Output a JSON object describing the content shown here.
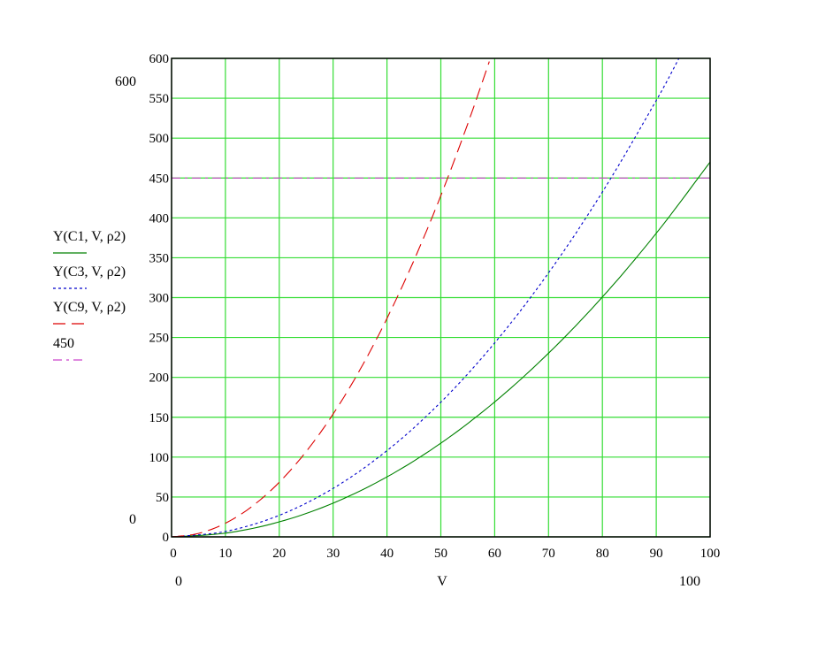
{
  "chart_data": {
    "type": "line",
    "x_range": [
      0,
      100
    ],
    "y_range": [
      0,
      600
    ],
    "grid": true,
    "x_ticks": [
      0,
      10,
      20,
      30,
      40,
      50,
      60,
      70,
      80,
      90,
      100
    ],
    "y_ticks": [
      0,
      50,
      100,
      150,
      200,
      250,
      300,
      350,
      400,
      450,
      500,
      550,
      600
    ],
    "x_axis_label": "V",
    "x_min_label": "0",
    "x_max_label": "100",
    "y_min_label": "0",
    "y_max_label": "600",
    "legend_placement": "left",
    "series": [
      {
        "name": "Y(C1, V, ρ2)",
        "color": "#008000",
        "dash": "solid",
        "x": [
          0,
          10,
          20,
          30,
          40,
          50,
          60,
          70,
          80,
          90,
          100
        ],
        "y": [
          0,
          4.7,
          18.8,
          42.3,
          75.2,
          117.5,
          169.2,
          230.3,
          300.8,
          380.7,
          470
        ]
      },
      {
        "name": "Y(C3, V, ρ2)",
        "color": "#0000cc",
        "dash": "dotted",
        "x": [
          0,
          10,
          20,
          30,
          40,
          50,
          60,
          70,
          80,
          90,
          94.2
        ],
        "y": [
          0,
          6.8,
          27,
          60.8,
          108.1,
          168.9,
          243.2,
          331,
          432.4,
          547.2,
          600
        ]
      },
      {
        "name": "Y(C9, V, ρ2)",
        "color": "#dd0000",
        "dash": "dashed",
        "x": [
          0,
          5,
          10,
          15,
          20,
          25,
          30,
          35,
          40,
          45,
          50,
          55,
          59
        ],
        "y": [
          0,
          4.3,
          17.1,
          38.5,
          68.5,
          107,
          154,
          209.7,
          273.9,
          346.6,
          428,
          518,
          596
        ]
      },
      {
        "name": "450",
        "color": "#cc44cc",
        "dash": "dashdot",
        "x": [
          0,
          100
        ],
        "y": [
          450,
          450
        ]
      }
    ]
  }
}
